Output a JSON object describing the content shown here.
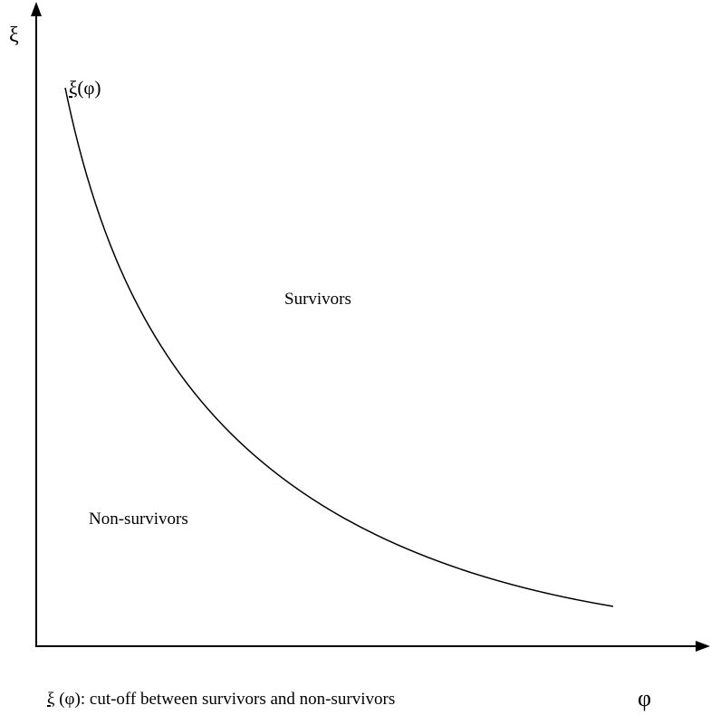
{
  "axes": {
    "y_label": "ξ",
    "x_label": "φ"
  },
  "curve_label": {
    "symbol": "ξ",
    "text": "(φ)"
  },
  "regions": {
    "upper": "Survivors",
    "lower": "Non-survivors"
  },
  "caption": {
    "symbol": "ξ",
    "text": " (φ): cut-off between survivors and non-survivors"
  }
}
